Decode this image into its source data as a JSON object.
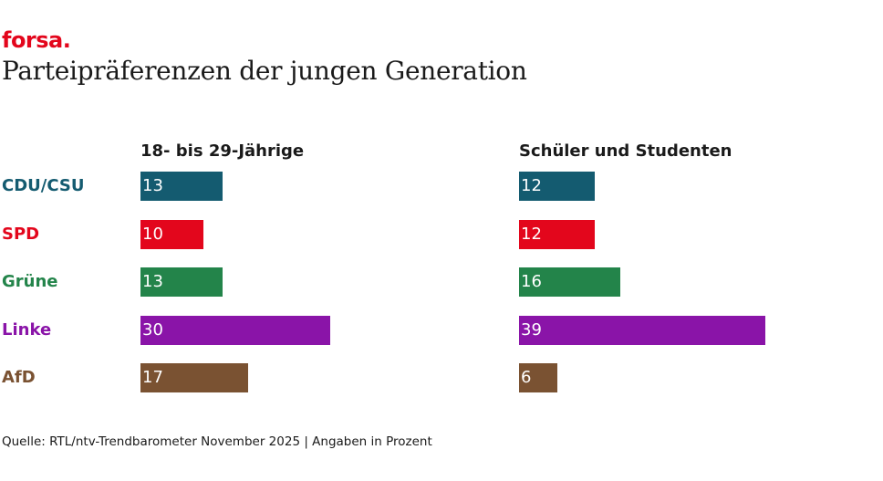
{
  "brand": "forsa.",
  "chart_data": {
    "type": "bar",
    "orientation": "horizontal",
    "title": "Parteipräferenzen der jungen Generation",
    "categories": [
      "CDU/CSU",
      "SPD",
      "Grüne",
      "Linke",
      "AfD"
    ],
    "category_colors": [
      "#145b70",
      "#e3061c",
      "#23844a",
      "#8a14a8",
      "#7a5232"
    ],
    "series": [
      {
        "name": "18- bis 29-Jährige",
        "values": [
          13,
          10,
          13,
          30,
          17
        ]
      },
      {
        "name": "Schüler und Studenten",
        "values": [
          12,
          12,
          16,
          39,
          6
        ]
      }
    ],
    "unit": "Prozent",
    "xlim": [
      0,
      40
    ]
  },
  "source": "Quelle: RTL/ntv-Trendbarometer November 2025 | Angaben in Prozent"
}
